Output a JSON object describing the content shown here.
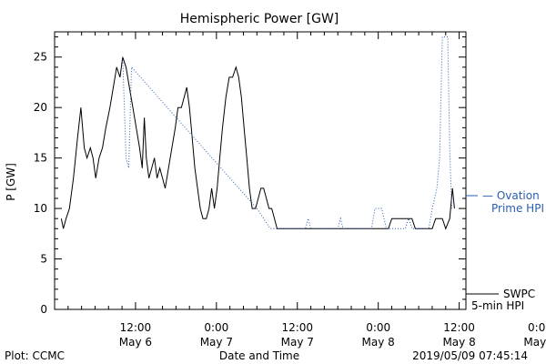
{
  "chart_data": {
    "type": "line",
    "title": "Hemispheric Power [GW]",
    "xlabel": "Date and Time",
    "ylabel": "P [GW]",
    "ylim": [
      0,
      27.5
    ],
    "xlim_hours_label": "hours from May 6 00:00",
    "yticks": [
      0,
      5,
      10,
      15,
      20,
      25
    ],
    "xticks": [
      {
        "t": 12,
        "time": "12:00",
        "date": "May 6"
      },
      {
        "t": 24,
        "time": "0:00",
        "date": "May 7"
      },
      {
        "t": 36,
        "time": "12:00",
        "date": "May 7"
      },
      {
        "t": 48,
        "time": "0:00",
        "date": "May 8"
      },
      {
        "t": 60,
        "time": "12:00",
        "date": "May 8"
      },
      {
        "t": 72,
        "time": "0:00",
        "date": "May 9"
      }
    ],
    "grid": false,
    "series": [
      {
        "name": "SWPC 5-min HPI",
        "color": "#000000",
        "style": "solid",
        "points": [
          [
            1,
            9
          ],
          [
            1.3,
            8
          ],
          [
            1.7,
            9
          ],
          [
            2.2,
            10
          ],
          [
            2.8,
            13
          ],
          [
            3.4,
            17
          ],
          [
            3.9,
            20
          ],
          [
            4.4,
            16
          ],
          [
            4.8,
            15
          ],
          [
            5.3,
            16
          ],
          [
            5.7,
            15
          ],
          [
            6.1,
            13
          ],
          [
            6.6,
            15
          ],
          [
            7.1,
            16
          ],
          [
            7.6,
            18
          ],
          [
            8.2,
            20
          ],
          [
            8.7,
            22
          ],
          [
            9.2,
            24
          ],
          [
            9.7,
            23
          ],
          [
            10.1,
            25
          ],
          [
            10.6,
            24
          ],
          [
            11.1,
            22
          ],
          [
            11.6,
            20
          ],
          [
            12.1,
            18
          ],
          [
            12.6,
            16
          ],
          [
            13,
            14
          ],
          [
            13.3,
            19
          ],
          [
            13.6,
            15
          ],
          [
            14,
            13
          ],
          [
            14.4,
            14
          ],
          [
            14.8,
            15
          ],
          [
            15.2,
            13
          ],
          [
            15.6,
            14
          ],
          [
            16,
            13
          ],
          [
            16.4,
            12
          ],
          [
            16.9,
            14
          ],
          [
            17.4,
            16
          ],
          [
            17.9,
            18
          ],
          [
            18.3,
            20
          ],
          [
            18.8,
            20
          ],
          [
            19.2,
            21
          ],
          [
            19.6,
            22
          ],
          [
            20,
            20
          ],
          [
            20.4,
            17
          ],
          [
            20.8,
            14
          ],
          [
            21.2,
            12
          ],
          [
            21.6,
            10
          ],
          [
            22,
            9
          ],
          [
            22.5,
            9
          ],
          [
            22.9,
            10
          ],
          [
            23.3,
            12
          ],
          [
            23.7,
            10
          ],
          [
            24.1,
            12
          ],
          [
            24.5,
            15
          ],
          [
            24.9,
            18
          ],
          [
            25.4,
            21
          ],
          [
            25.9,
            23
          ],
          [
            26.4,
            23
          ],
          [
            26.9,
            24
          ],
          [
            27.3,
            23
          ],
          [
            27.7,
            21
          ],
          [
            28.1,
            18
          ],
          [
            28.5,
            15
          ],
          [
            28.9,
            12
          ],
          [
            29.3,
            10
          ],
          [
            29.8,
            10
          ],
          [
            30.2,
            11
          ],
          [
            30.6,
            12
          ],
          [
            31,
            12
          ],
          [
            31.4,
            11
          ],
          [
            31.8,
            10
          ],
          [
            32.2,
            10
          ],
          [
            32.6,
            9
          ],
          [
            33,
            8
          ],
          [
            36,
            8
          ],
          [
            45,
            8
          ],
          [
            49.5,
            8
          ],
          [
            50,
            9
          ],
          [
            53,
            9
          ],
          [
            53.5,
            8
          ],
          [
            56,
            8
          ],
          [
            56.5,
            9
          ],
          [
            57.5,
            9
          ],
          [
            58,
            8
          ],
          [
            58.6,
            9
          ],
          [
            59,
            12
          ],
          [
            59.3,
            10
          ]
        ]
      },
      {
        "name": "Ovation Prime HPI",
        "color": "#2a5db0",
        "style": "dotted",
        "points": [
          [
            10.1,
            25
          ],
          [
            10.6,
            15
          ],
          [
            11,
            14
          ],
          [
            11.4,
            24
          ],
          [
            30,
            10
          ],
          [
            31,
            9
          ],
          [
            32,
            8
          ],
          [
            37.2,
            8
          ],
          [
            37.6,
            9
          ],
          [
            38,
            8
          ],
          [
            42,
            8
          ],
          [
            42.4,
            9
          ],
          [
            42.8,
            8
          ],
          [
            47,
            8
          ],
          [
            47.5,
            10
          ],
          [
            48.5,
            10
          ],
          [
            49.2,
            8
          ],
          [
            52,
            8
          ],
          [
            52.5,
            9
          ],
          [
            53,
            8
          ],
          [
            55.5,
            8
          ],
          [
            56,
            10
          ],
          [
            56.7,
            12
          ],
          [
            57.1,
            15
          ],
          [
            57.5,
            27
          ],
          [
            58.3,
            27
          ],
          [
            58.6,
            16
          ],
          [
            58.9,
            10
          ]
        ]
      }
    ],
    "legend": [
      {
        "marker": "— Ovation",
        "label": "Prime HPI",
        "color": "#2a5db0"
      },
      {
        "marker": "SWPC",
        "label": "5-min HPI",
        "color": "#000000"
      }
    ]
  },
  "footer": {
    "left": "Plot: CCMC",
    "center": "Date and Time",
    "right": "2019/05/09 07:45:14"
  }
}
